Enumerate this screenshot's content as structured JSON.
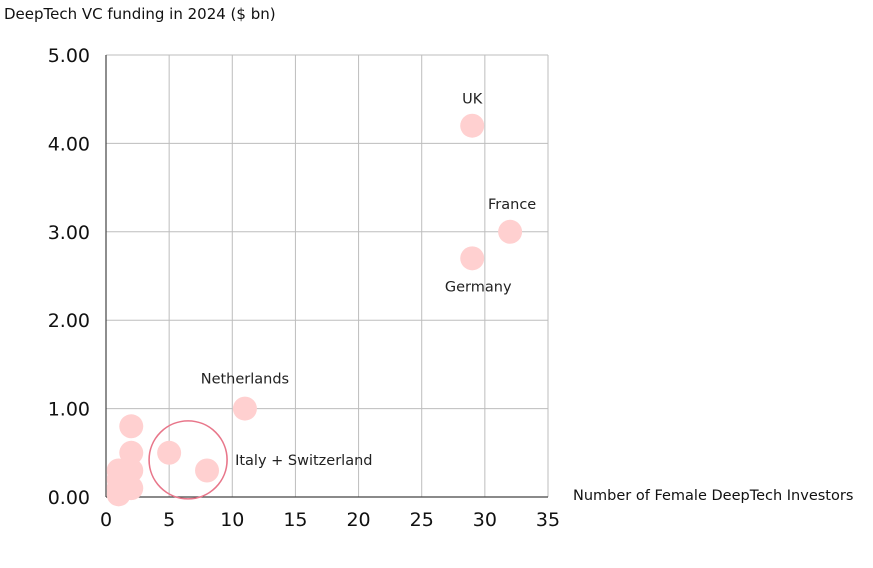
{
  "chart_data": {
    "type": "scatter",
    "title": "",
    "ylabel": "DeepTech VC funding in 2024 ($ bn)",
    "xlabel": "Number of Female DeepTech Investors",
    "xlim": [
      0,
      35
    ],
    "ylim": [
      0,
      5
    ],
    "x_ticks": [
      "0",
      "5",
      "10",
      "15",
      "20",
      "25",
      "30",
      "35"
    ],
    "y_ticks": [
      "0.00",
      "1.00",
      "2.00",
      "3.00",
      "4.00",
      "5.00"
    ],
    "grid": true,
    "legend": "none",
    "points": [
      {
        "x": 29,
        "y": 4.2
      },
      {
        "x": 32,
        "y": 3.0
      },
      {
        "x": 29,
        "y": 2.7
      },
      {
        "x": 11,
        "y": 1.0
      },
      {
        "x": 8,
        "y": 0.3
      },
      {
        "x": 5,
        "y": 0.5
      },
      {
        "x": 2,
        "y": 0.8
      },
      {
        "x": 2,
        "y": 0.5
      },
      {
        "x": 2,
        "y": 0.3
      },
      {
        "x": 2,
        "y": 0.1
      },
      {
        "x": 1,
        "y": 0.3
      },
      {
        "x": 1,
        "y": 0.2
      },
      {
        "x": 1,
        "y": 0.1
      },
      {
        "x": 1,
        "y": 0.03
      }
    ],
    "annotations": [
      {
        "text": "UK",
        "x": 29,
        "y": 4.2
      },
      {
        "text": "France",
        "x": 32,
        "y": 3.0
      },
      {
        "text": "Germany",
        "x": 29,
        "y": 2.7
      },
      {
        "text": "Netherlands",
        "x": 11,
        "y": 1.0
      },
      {
        "text": "Italy + Switzerland",
        "x": 6.5,
        "y": 0.42
      }
    ],
    "highlight": {
      "x": 6.5,
      "y": 0.42,
      "label": "Italy + Switzerland"
    },
    "colors": {
      "point": "#ffd0d0",
      "highlight_ring": "#e8768a",
      "grid": "#bdbdbd",
      "axis": "#444444"
    }
  }
}
